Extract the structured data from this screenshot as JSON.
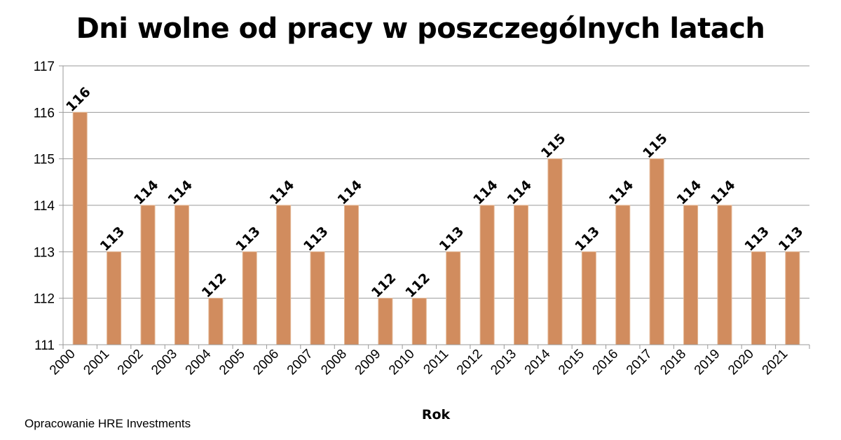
{
  "source_note": "Opracowanie HRE Investments",
  "colors": {
    "bar": "#D18C5E",
    "bar_edge": "#E4B794",
    "grid": "#9A9A9A"
  },
  "chart_data": {
    "type": "bar",
    "title": "Dni wolne od pracy w poszczególnych latach",
    "xlabel": "Rok",
    "ylabel": "",
    "ylim": [
      111,
      117
    ],
    "yticks": [
      111,
      112,
      113,
      114,
      115,
      116,
      117
    ],
    "categories": [
      "2000",
      "2001",
      "2002",
      "2003",
      "2004",
      "2005",
      "2006",
      "2007",
      "2008",
      "2009",
      "2010",
      "2011",
      "2012",
      "2013",
      "2014",
      "2015",
      "2016",
      "2017",
      "2018",
      "2019",
      "2020",
      "2021"
    ],
    "values": [
      116,
      113,
      114,
      114,
      112,
      113,
      114,
      113,
      114,
      112,
      112,
      113,
      114,
      114,
      115,
      113,
      114,
      115,
      114,
      114,
      113,
      113
    ],
    "grid": true,
    "data_labels": true
  }
}
